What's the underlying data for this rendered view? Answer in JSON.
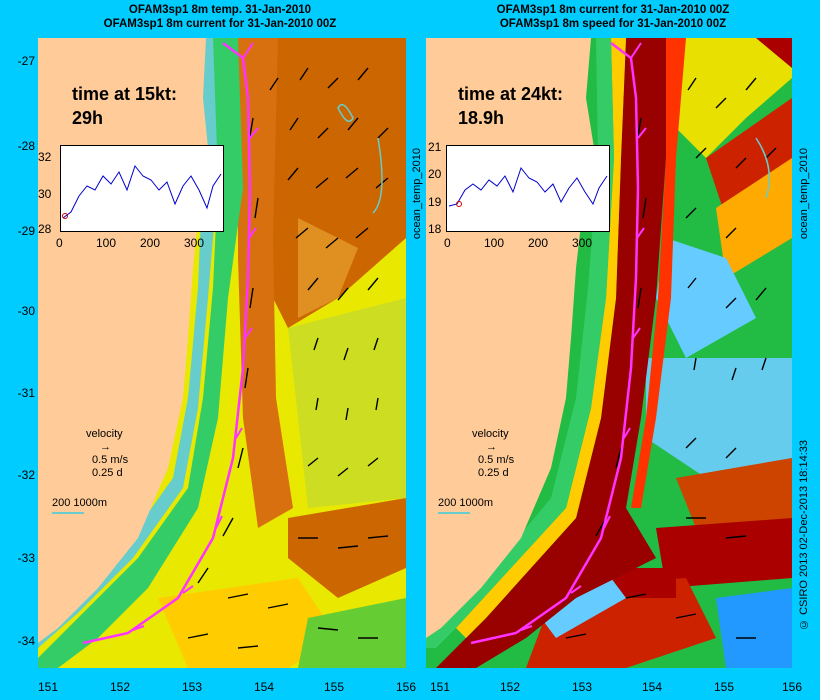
{
  "left": {
    "title_line1": "OFAM3sp1 8m temp. 31-Jan-2010",
    "title_line2": "OFAM3sp1 8m current for 31-Jan-2010 00Z",
    "time_label": "time at 15kt:",
    "time_value": "29h",
    "side_label": "ocean_temp_2010",
    "inset_y_ticks": [
      "32",
      "30",
      "28"
    ],
    "inset_x_ticks": [
      "0",
      "100",
      "200",
      "300"
    ]
  },
  "right": {
    "title_line1": "OFAM3sp1 8m current for 31-Jan-2010 00Z",
    "title_line2": "OFAM3sp1 8m speed for 31-Jan-2010 00Z",
    "time_label": "time at 24kt:",
    "time_value": "18.9h",
    "side_label": "ocean_temp_2010",
    "inset_y_ticks": [
      "21",
      "20",
      "19",
      "18"
    ],
    "inset_x_ticks": [
      "0",
      "100",
      "200",
      "300"
    ]
  },
  "legend": {
    "velocity": "velocity",
    "speed": "0.5 m/s",
    "days": "0.25 d",
    "depth": "200  1000m"
  },
  "y_ticks": [
    "-27",
    "-28",
    "-29",
    "-30",
    "-31",
    "-32",
    "-33",
    "-34"
  ],
  "x_ticks": [
    "151",
    "152",
    "153",
    "154",
    "155",
    "156"
  ],
  "credit": "© CSIRO 2013   02-Dec-2013 18:14:33",
  "colors": {
    "background": "#00ccff",
    "land": "#ffcc99",
    "route": "#ff33ff",
    "isobath": "#66cccc",
    "timeseries": "#0000cc"
  }
}
